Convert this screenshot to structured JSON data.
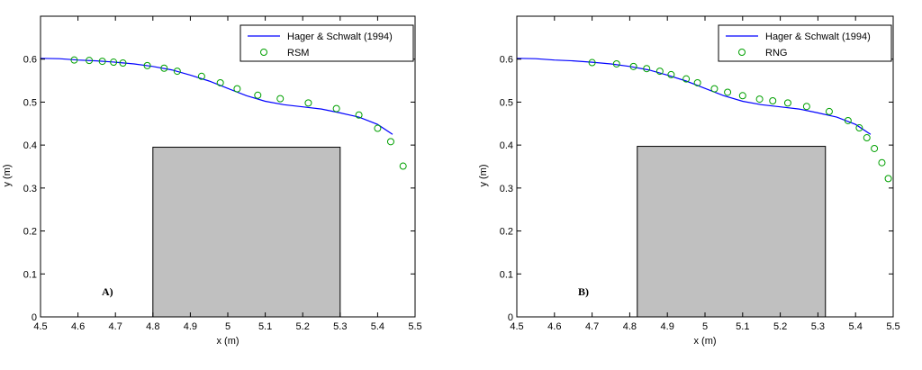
{
  "chart_data": [
    {
      "type": "line",
      "panel_label": "A)",
      "xlabel": "x (m)",
      "ylabel": "y (m)",
      "xlim": [
        4.5,
        5.5
      ],
      "ylim": [
        0,
        0.7
      ],
      "xticks": [
        "4.5",
        "4.6",
        "4.7",
        "4.8",
        "4.9",
        "5",
        "5.1",
        "5.2",
        "5.3",
        "5.4",
        "5.5"
      ],
      "yticks": [
        "0",
        "0.1",
        "0.2",
        "0.3",
        "0.4",
        "0.5",
        "0.6"
      ],
      "legend_position": "top-right",
      "grid": false,
      "series": [
        {
          "name": "Hager & Schwalt (1994)",
          "style": "line",
          "color": "#0000ff",
          "x": [
            4.5,
            4.55,
            4.6,
            4.65,
            4.7,
            4.75,
            4.8,
            4.85,
            4.9,
            4.95,
            5.0,
            5.05,
            5.1,
            5.15,
            5.2,
            5.25,
            5.3,
            5.35,
            5.4,
            5.44
          ],
          "y": [
            0.602,
            0.601,
            0.598,
            0.596,
            0.593,
            0.589,
            0.583,
            0.575,
            0.563,
            0.549,
            0.532,
            0.515,
            0.502,
            0.494,
            0.489,
            0.484,
            0.475,
            0.465,
            0.448,
            0.425
          ]
        },
        {
          "name": "RSM",
          "style": "marker",
          "color": "#00a000",
          "x": [
            4.59,
            4.63,
            4.665,
            4.695,
            4.72,
            4.785,
            4.83,
            4.865,
            4.93,
            4.98,
            5.025,
            5.08,
            5.14,
            5.215,
            5.29,
            5.35,
            5.4,
            5.435,
            5.468
          ],
          "y": [
            0.598,
            0.597,
            0.595,
            0.593,
            0.591,
            0.585,
            0.579,
            0.572,
            0.56,
            0.545,
            0.531,
            0.516,
            0.508,
            0.498,
            0.485,
            0.47,
            0.439,
            0.408,
            0.351
          ]
        }
      ],
      "block": {
        "x": [
          4.8,
          5.3
        ],
        "y": [
          0,
          0.395
        ],
        "color": "#c0c0c0"
      }
    },
    {
      "type": "line",
      "panel_label": "B)",
      "xlabel": "x (m)",
      "ylabel": "y (m)",
      "xlim": [
        4.5,
        5.5
      ],
      "ylim": [
        0,
        0.7
      ],
      "xticks": [
        "4.5",
        "4.6",
        "4.7",
        "4.8",
        "4.9",
        "5",
        "5.1",
        "5.2",
        "5.3",
        "5.4",
        "5.5"
      ],
      "yticks": [
        "0",
        "0.1",
        "0.2",
        "0.3",
        "0.4",
        "0.5",
        "0.6"
      ],
      "legend_position": "top-right",
      "grid": false,
      "series": [
        {
          "name": "Hager & Schwalt (1994)",
          "style": "line",
          "color": "#0000ff",
          "x": [
            4.5,
            4.55,
            4.6,
            4.65,
            4.7,
            4.75,
            4.8,
            4.85,
            4.9,
            4.95,
            5.0,
            5.05,
            5.1,
            5.15,
            5.2,
            5.25,
            5.3,
            5.35,
            5.4,
            5.44
          ],
          "y": [
            0.602,
            0.601,
            0.598,
            0.596,
            0.593,
            0.589,
            0.583,
            0.575,
            0.563,
            0.549,
            0.532,
            0.515,
            0.502,
            0.494,
            0.489,
            0.484,
            0.475,
            0.465,
            0.448,
            0.425
          ]
        },
        {
          "name": "RNG",
          "style": "marker",
          "color": "#00a000",
          "x": [
            4.7,
            4.765,
            4.81,
            4.845,
            4.88,
            4.91,
            4.95,
            4.98,
            5.025,
            5.06,
            5.1,
            5.145,
            5.18,
            5.22,
            5.27,
            5.33,
            5.38,
            5.41,
            5.43,
            5.45,
            5.47,
            5.487
          ],
          "y": [
            0.592,
            0.589,
            0.583,
            0.578,
            0.572,
            0.564,
            0.554,
            0.545,
            0.531,
            0.523,
            0.515,
            0.507,
            0.503,
            0.498,
            0.49,
            0.478,
            0.457,
            0.44,
            0.417,
            0.392,
            0.359,
            0.322
          ]
        }
      ],
      "block": {
        "x": [
          4.82,
          5.32
        ],
        "y": [
          0,
          0.397
        ],
        "color": "#c0c0c0"
      }
    }
  ]
}
